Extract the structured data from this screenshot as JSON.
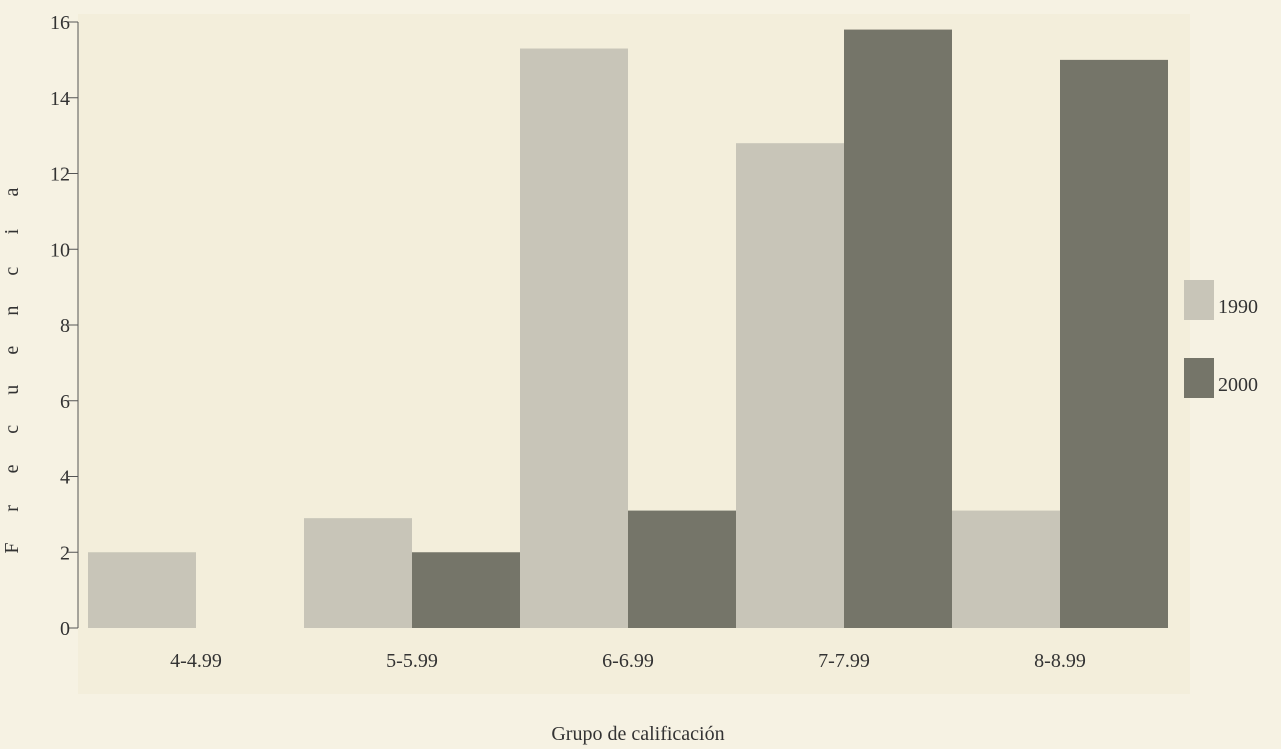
{
  "chart_data": {
    "type": "bar",
    "title": "",
    "xlabel": "Grupo de calificación",
    "ylabel": "Frecuencia",
    "categories": [
      "4-4.99",
      "5-5.99",
      "6-6.99",
      "7-7.99",
      "8-8.99"
    ],
    "series": [
      {
        "name": "1990",
        "values": [
          2,
          2.9,
          15.3,
          12.8,
          3.1
        ],
        "color": "#c8c5b8"
      },
      {
        "name": "2000",
        "values": [
          0,
          2,
          3.1,
          15.8,
          15
        ],
        "color": "#757569"
      }
    ],
    "y_ticks": [
      "0",
      "2",
      "4",
      "6",
      "8",
      "10",
      "12",
      "14",
      "16"
    ],
    "ylim": [
      0,
      16
    ],
    "grid": false,
    "legend_position": "right"
  }
}
